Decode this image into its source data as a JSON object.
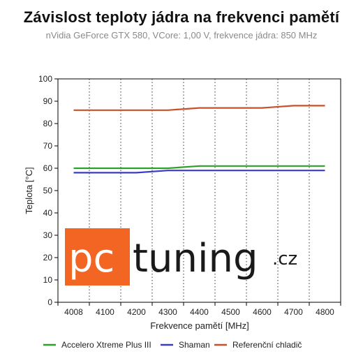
{
  "chart_data": {
    "type": "line",
    "title": "Závislost teploty jádra na frekvenci pamětí",
    "subtitle": "nVidia GeForce GTX 580, VCore: 1,00 V, frekvence jádra: 850 MHz",
    "xlabel": "Frekvence pamětí [MHz]",
    "ylabel": "Teplota [°C]",
    "categories": [
      "4008",
      "4100",
      "4200",
      "4300",
      "4400",
      "4500",
      "4600",
      "4700",
      "4800"
    ],
    "x": [
      4008,
      4100,
      4200,
      4300,
      4400,
      4500,
      4600,
      4700,
      4800
    ],
    "ylim": [
      0,
      100
    ],
    "yticks": [
      0,
      10,
      20,
      30,
      40,
      50,
      60,
      70,
      80,
      90,
      100
    ],
    "grid": "vertical-dotted",
    "legend_position": "bottom",
    "series": [
      {
        "name": "Accelero Xtreme Plus III",
        "color": "#2ca02c",
        "values": [
          60,
          60,
          60,
          60,
          61,
          61,
          61,
          61,
          61
        ]
      },
      {
        "name": "Shaman",
        "color": "#3b3bc4",
        "values": [
          58,
          58,
          58,
          59,
          59,
          59,
          59,
          59,
          59
        ]
      },
      {
        "name": "Referenční chladič",
        "color": "#c8502a",
        "values": [
          86,
          86,
          86,
          86,
          87,
          87,
          87,
          88,
          88
        ]
      }
    ]
  },
  "watermark": {
    "part1": "pc",
    "part2": "tuning",
    "part3": ".cz",
    "accent_color": "#f26522"
  }
}
